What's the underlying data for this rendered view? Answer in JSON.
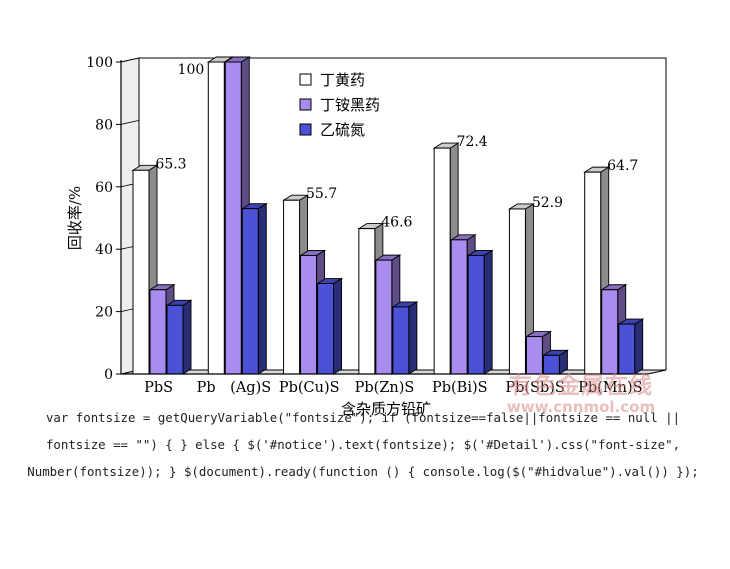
{
  "chart_data": {
    "type": "bar",
    "style": "3d-clustered",
    "title": "",
    "xlabel": "含杂质方铅矿",
    "ylabel": "回收率/%",
    "ylim": [
      0,
      100
    ],
    "yticks": [
      0,
      20,
      40,
      60,
      80,
      100
    ],
    "categories": [
      "PbS",
      "Pb　(Ag)S",
      "Pb(Cu)S",
      "Pb(Zn)S",
      "Pb(Bi)S",
      "Pb(Sb)S",
      "Pb(Mn)S"
    ],
    "series": [
      {
        "name": "丁黄药",
        "color": "#ffffff",
        "values": [
          65.3,
          100,
          55.7,
          46.6,
          72.4,
          52.9,
          64.7
        ]
      },
      {
        "name": "丁铵黑药",
        "color": "#a98cf0",
        "values": [
          27,
          100,
          38,
          36.5,
          43,
          12,
          27
        ]
      },
      {
        "name": "乙硫氮",
        "color": "#4b52d6",
        "values": [
          22,
          53,
          29,
          21.5,
          38,
          6,
          16
        ]
      }
    ],
    "data_labels": [
      "65.3",
      "100",
      "55.7",
      "46.6",
      "72.4",
      "52.9",
      "64.7"
    ],
    "legend_position": "top-center"
  },
  "watermark": {
    "text_cn": "有色金属在线",
    "url": "www.cnnmol.com"
  },
  "code_snippet": "var fontsize = getQueryVariable(\"fontsize\"); if (fontsize==false||fontsize == null || fontsize == \"\") { } else { $('#notice').text(fontsize); $('#Detail').css(\"font-size\", Number(fontsize)); } $(document).ready(function () { console.log($(\"#hidvalue\").val()) });"
}
